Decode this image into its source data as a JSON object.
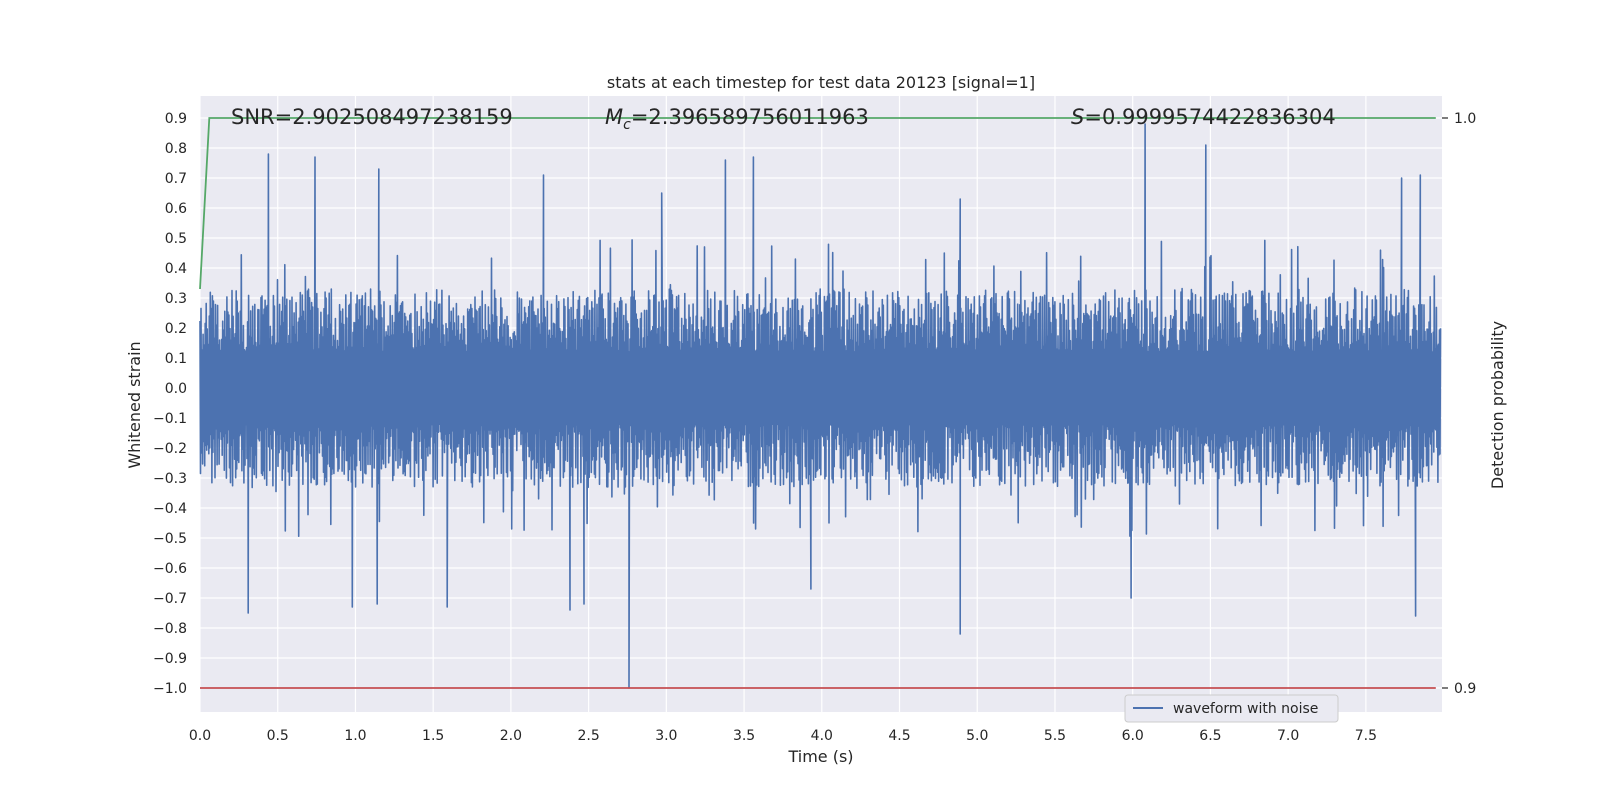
{
  "chart_data": {
    "type": "line",
    "title": "stats at each timestep for test data 20123 [signal=1]",
    "xlabel": "Time (s)",
    "ylabel": "Whitened strain",
    "y2label": "Detection probability",
    "xlim": [
      0.0,
      8.0
    ],
    "ylim": [
      -1.09,
      0.98
    ],
    "y2lim": [
      0.9,
      1.0
    ],
    "x_ticks": [
      0.0,
      0.5,
      1.0,
      1.5,
      2.0,
      2.5,
      3.0,
      3.5,
      4.0,
      4.5,
      5.0,
      5.5,
      6.0,
      6.5,
      7.0,
      7.5
    ],
    "x_tick_labels": [
      "0.0",
      "0.5",
      "1.0",
      "1.5",
      "2.0",
      "2.5",
      "3.0",
      "3.5",
      "4.0",
      "4.5",
      "5.0",
      "5.5",
      "6.0",
      "6.5",
      "7.0",
      "7.5"
    ],
    "y_ticks": [
      0.9,
      0.8,
      0.7,
      0.6,
      0.5,
      0.4,
      0.3,
      0.2,
      0.1,
      0.0,
      -0.1,
      -0.2,
      -0.3,
      -0.4,
      -0.5,
      -0.6,
      -0.7,
      -0.8,
      -0.9,
      -1.0
    ],
    "y_tick_labels": [
      "0.9",
      "0.8",
      "0.7",
      "0.6",
      "0.5",
      "0.4",
      "0.3",
      "0.2",
      "0.1",
      "0.0",
      "−0.1",
      "−0.2",
      "−0.3",
      "−0.4",
      "−0.5",
      "−0.6",
      "−0.7",
      "−0.8",
      "−0.9",
      "−1.0"
    ],
    "y2_ticks": [
      1.0,
      0.9
    ],
    "y2_tick_labels": [
      "1.0",
      "0.9"
    ],
    "grid": true,
    "legend_placement": "bottom-right",
    "annotations": {
      "snr": "SNR=2.902508497238159",
      "mc_symbol": "M",
      "mc_sub": "c",
      "mc_value": "=2.396589756011963",
      "s_symbol": "S",
      "s_value": "=0.9999574422836304"
    },
    "series": [
      {
        "name": "waveform with noise",
        "color": "#4c72b0",
        "axis": "left",
        "description": "whitened noisy strain, dense oscillation over 0-8 s, mostly within +-0.4",
        "amplitude_core": 0.3,
        "peaks": [
          {
            "x": 0.44,
            "y": 0.78
          },
          {
            "x": 0.74,
            "y": 0.77
          },
          {
            "x": 1.15,
            "y": 0.73
          },
          {
            "x": 2.21,
            "y": 0.71
          },
          {
            "x": 2.97,
            "y": 0.65
          },
          {
            "x": 3.38,
            "y": 0.76
          },
          {
            "x": 3.56,
            "y": 0.77
          },
          {
            "x": 4.89,
            "y": 0.63
          },
          {
            "x": 6.08,
            "y": 0.88
          },
          {
            "x": 6.47,
            "y": 0.81
          },
          {
            "x": 7.73,
            "y": 0.7
          },
          {
            "x": 7.85,
            "y": 0.71
          }
        ],
        "troughs": [
          {
            "x": 0.31,
            "y": -0.75
          },
          {
            "x": 0.98,
            "y": -0.73
          },
          {
            "x": 1.14,
            "y": -0.72
          },
          {
            "x": 1.59,
            "y": -0.73
          },
          {
            "x": 2.38,
            "y": -0.74
          },
          {
            "x": 2.47,
            "y": -0.72
          },
          {
            "x": 2.76,
            "y": -1.0
          },
          {
            "x": 3.93,
            "y": -0.67
          },
          {
            "x": 4.89,
            "y": -0.82
          },
          {
            "x": 5.99,
            "y": -0.7
          },
          {
            "x": 7.82,
            "y": -0.76
          }
        ]
      },
      {
        "name": "",
        "color": "#55a868",
        "axis": "right",
        "x": [
          0.0,
          0.06,
          7.95
        ],
        "y": [
          0.97,
          1.0,
          1.0
        ]
      },
      {
        "name": "",
        "color": "#c44e52",
        "axis": "right",
        "x": [
          0.0,
          7.95
        ],
        "y": [
          0.9,
          0.9
        ]
      }
    ]
  }
}
